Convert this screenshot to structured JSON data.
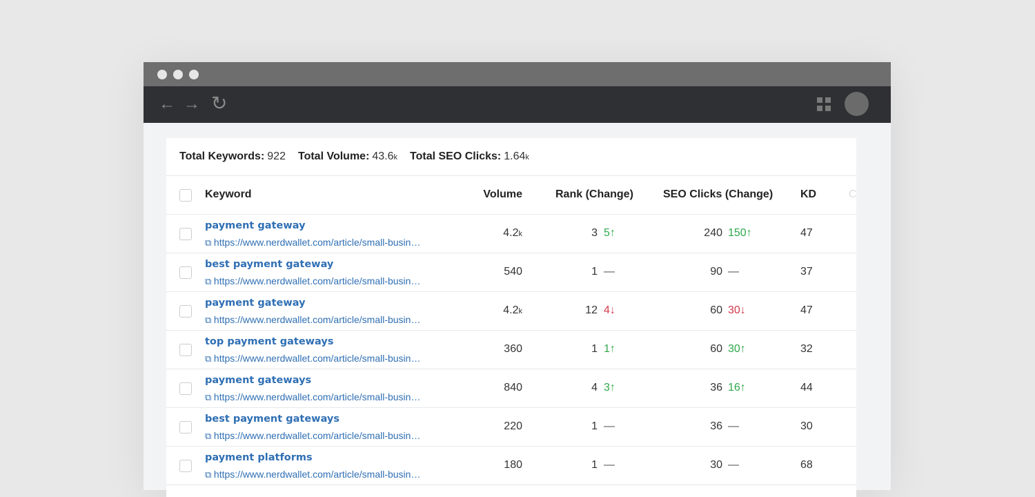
{
  "browser": {
    "back_icon": "←",
    "forward_icon": "→",
    "reload_icon": "↻"
  },
  "summary": {
    "keywords_label": "Total Keywords:",
    "keywords": "922",
    "volume_label": "Total Volume:",
    "volume": "43.6",
    "volume_unit": "k",
    "clicks_label": "Total SEO Clicks:",
    "clicks": "1.64",
    "clicks_unit": "k"
  },
  "columns": {
    "keyword": "Keyword",
    "volume": "Volume",
    "rank": "Rank (Change)",
    "seo": "SEO Clicks (Change)",
    "kd": "KD",
    "next": "C"
  },
  "colors": {
    "up": "#2ea84a",
    "down": "#d6394a",
    "link": "#2f6fb4"
  },
  "rows": [
    {
      "keyword": "payment gateway",
      "url": "https://www.nerdwallet.com/article/small-busin…",
      "volume": "4.2",
      "unit": "k",
      "rank": "3",
      "rank_change": "5↑",
      "rank_dir": "up",
      "seo": "240",
      "seo_change": "150↑",
      "seo_dir": "up",
      "kd": "47"
    },
    {
      "keyword": "best payment gateway",
      "url": "https://www.nerdwallet.com/article/small-busin…",
      "volume": "540",
      "unit": "",
      "rank": "1",
      "rank_change": "—",
      "rank_dir": "flat",
      "seo": "90",
      "seo_change": "—",
      "seo_dir": "flat",
      "kd": "37"
    },
    {
      "keyword": "payment gateway",
      "url": "https://www.nerdwallet.com/article/small-busin…",
      "volume": "4.2",
      "unit": "k",
      "rank": "12",
      "rank_change": "4↓",
      "rank_dir": "down",
      "seo": "60",
      "seo_change": "30↓",
      "seo_dir": "down",
      "kd": "47"
    },
    {
      "keyword": "top payment gateways",
      "url": "https://www.nerdwallet.com/article/small-busin…",
      "volume": "360",
      "unit": "",
      "rank": "1",
      "rank_change": "1↑",
      "rank_dir": "up",
      "seo": "60",
      "seo_change": "30↑",
      "seo_dir": "up",
      "kd": "32"
    },
    {
      "keyword": "payment gateways",
      "url": "https://www.nerdwallet.com/article/small-busin…",
      "volume": "840",
      "unit": "",
      "rank": "4",
      "rank_change": "3↑",
      "rank_dir": "up",
      "seo": "36",
      "seo_change": "16↑",
      "seo_dir": "up",
      "kd": "44"
    },
    {
      "keyword": "best payment gateways",
      "url": "https://www.nerdwallet.com/article/small-busin…",
      "volume": "220",
      "unit": "",
      "rank": "1",
      "rank_change": "—",
      "rank_dir": "flat",
      "seo": "36",
      "seo_change": "—",
      "seo_dir": "flat",
      "kd": "30"
    },
    {
      "keyword": "payment platforms",
      "url": "https://www.nerdwallet.com/article/small-busin…",
      "volume": "180",
      "unit": "",
      "rank": "1",
      "rank_change": "—",
      "rank_dir": "flat",
      "seo": "30",
      "seo_change": "—",
      "seo_dir": "flat",
      "kd": "68"
    }
  ]
}
